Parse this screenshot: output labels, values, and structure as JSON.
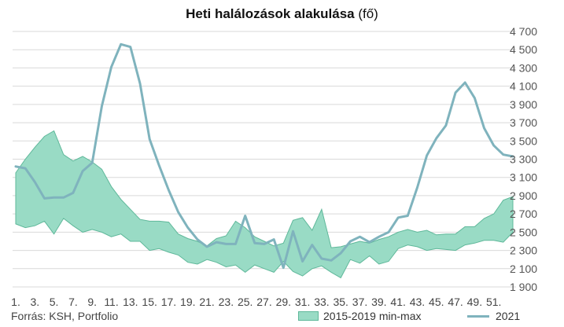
{
  "header": {
    "title_bold": "Heti halálozások alakulása",
    "title_rest": " (fő)"
  },
  "footer": {
    "source": "Forrás: KSH, Portfolio"
  },
  "legend": {
    "range_label": "2015-2019 min-max",
    "line_label": "2021"
  },
  "colors": {
    "band_fill": "#99dbc5",
    "band_stroke": "#5fb89a",
    "line_2021": "#7fb3bd",
    "grid": "#d9d9d9"
  },
  "chart_data": {
    "type": "area",
    "title": "Heti halálozások alakulása (fő)",
    "y_axis_side": "right",
    "ylim": [
      1900,
      4700
    ],
    "yticks": [
      1900,
      2100,
      2300,
      2500,
      2700,
      2900,
      3100,
      3300,
      3500,
      3700,
      3900,
      4100,
      4300,
      4500,
      4700
    ],
    "ytick_labels": [
      "1 900",
      "2 100",
      "2 300",
      "2 500",
      "2 700",
      "2 900",
      "3 100",
      "3 300",
      "3 500",
      "3 700",
      "3 900",
      "4 100",
      "4 300",
      "4 500",
      "4 700"
    ],
    "xtick_labels": [
      "1.",
      "3.",
      "5.",
      "7.",
      "9.",
      "11.",
      "13.",
      "15.",
      "17.",
      "19.",
      "21.",
      "23.",
      "25.",
      "27.",
      "29.",
      "31.",
      "33.",
      "35.",
      "37.",
      "39.",
      "41.",
      "43.",
      "45.",
      "47.",
      "49.",
      "51."
    ],
    "grid": true,
    "legend_position": "bottom-right",
    "x": [
      1,
      2,
      3,
      4,
      5,
      6,
      7,
      8,
      9,
      10,
      11,
      12,
      13,
      14,
      15,
      16,
      17,
      18,
      19,
      20,
      21,
      22,
      23,
      24,
      25,
      26,
      27,
      28,
      29,
      30,
      31,
      32,
      33,
      34,
      35,
      36,
      37,
      38,
      39,
      40,
      41,
      42,
      43,
      44,
      45,
      46,
      47,
      48,
      49,
      50,
      51,
      52,
      53
    ],
    "series": [
      {
        "name": "2015-2019 min-max",
        "kind": "band",
        "min": [
          2590,
          2550,
          2570,
          2620,
          2480,
          2650,
          2570,
          2500,
          2530,
          2500,
          2450,
          2480,
          2400,
          2400,
          2300,
          2320,
          2280,
          2250,
          2170,
          2150,
          2200,
          2170,
          2120,
          2140,
          2060,
          2140,
          2100,
          2060,
          2180,
          2070,
          2020,
          2100,
          2130,
          2060,
          2000,
          2200,
          2160,
          2240,
          2150,
          2180,
          2320,
          2360,
          2340,
          2300,
          2320,
          2310,
          2300,
          2360,
          2380,
          2410,
          2410,
          2390,
          2500
        ],
        "max": [
          3150,
          3300,
          3430,
          3550,
          3610,
          3350,
          3280,
          3330,
          3270,
          3190,
          3000,
          2860,
          2750,
          2640,
          2620,
          2620,
          2610,
          2480,
          2430,
          2400,
          2350,
          2430,
          2460,
          2620,
          2550,
          2450,
          2400,
          2350,
          2380,
          2630,
          2660,
          2520,
          2750,
          2330,
          2340,
          2370,
          2400,
          2380,
          2420,
          2450,
          2500,
          2530,
          2500,
          2520,
          2470,
          2480,
          2480,
          2560,
          2560,
          2650,
          2700,
          2850,
          2890
        ]
      },
      {
        "name": "2021",
        "kind": "line",
        "values": [
          3220,
          3200,
          3050,
          2870,
          2880,
          2880,
          2930,
          3170,
          3260,
          3880,
          4310,
          4560,
          4530,
          4130,
          3520,
          3230,
          2960,
          2720,
          2550,
          2420,
          2340,
          2390,
          2370,
          2370,
          2680,
          2380,
          2370,
          2420,
          2110,
          2510,
          2180,
          2360,
          2210,
          2190,
          2270,
          2400,
          2450,
          2390,
          2450,
          2500,
          2660,
          2680,
          2990,
          3340,
          3530,
          3670,
          4030,
          4140,
          3970,
          3640,
          3450,
          3350,
          3330
        ]
      }
    ]
  }
}
